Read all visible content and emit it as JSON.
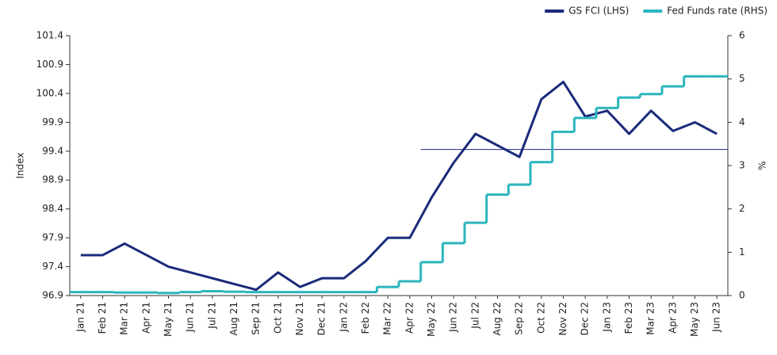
{
  "chart_data": {
    "type": "line",
    "categories": [
      "Jan 21",
      "Feb 21",
      "Mar 21",
      "Apr 21",
      "May 21",
      "Jun 21",
      "Jul 21",
      "Aug 21",
      "Sep 21",
      "Oct 21",
      "Nov 21",
      "Dec 21",
      "Jan 22",
      "Feb 22",
      "Mar 22",
      "Apr 22",
      "May 22",
      "Jun 22",
      "Jul 22",
      "Aug 22",
      "Sep 22",
      "Oct 22",
      "Nov 22",
      "Dec 22",
      "Jan 23",
      "Feb 23",
      "Mar 23",
      "Apr 23",
      "May 23",
      "Jun 23"
    ],
    "series": [
      {
        "name": "GS FCI (LHS)",
        "color": "#1b2a7a",
        "axis": "y",
        "values": [
          97.6,
          97.6,
          97.8,
          97.6,
          97.4,
          97.3,
          97.2,
          97.1,
          97.0,
          97.3,
          97.05,
          97.2,
          97.2,
          97.5,
          97.9,
          97.9,
          98.6,
          99.2,
          99.7,
          99.5,
          99.3,
          100.3,
          100.6,
          100.0,
          100.1,
          99.7,
          100.1,
          99.75,
          99.9,
          99.7
        ]
      },
      {
        "name": "Fed Funds rate (RHS)",
        "color": "#2bb5bd",
        "axis": "y2",
        "step": true,
        "values": [
          0.08,
          0.08,
          0.07,
          0.07,
          0.06,
          0.08,
          0.1,
          0.09,
          0.08,
          0.08,
          0.08,
          0.08,
          0.08,
          0.08,
          0.2,
          0.33,
          0.77,
          1.21,
          1.68,
          2.33,
          2.56,
          3.08,
          3.78,
          4.1,
          4.33,
          4.57,
          4.65,
          4.83,
          5.06,
          5.06
        ]
      }
    ],
    "hline": {
      "value": 99.43,
      "from": "May 22",
      "color": "#1b2a7a"
    },
    "ylabel": "Index",
    "y2label": "%",
    "ylim": [
      96.9,
      101.4
    ],
    "yticks": [
      96.9,
      97.4,
      97.9,
      98.4,
      98.9,
      99.4,
      99.9,
      100.4,
      100.9,
      101.4
    ],
    "y2lim": [
      0,
      6
    ],
    "y2ticks": [
      0,
      1,
      2,
      3,
      4,
      5,
      6
    ],
    "legend": "top-right"
  }
}
